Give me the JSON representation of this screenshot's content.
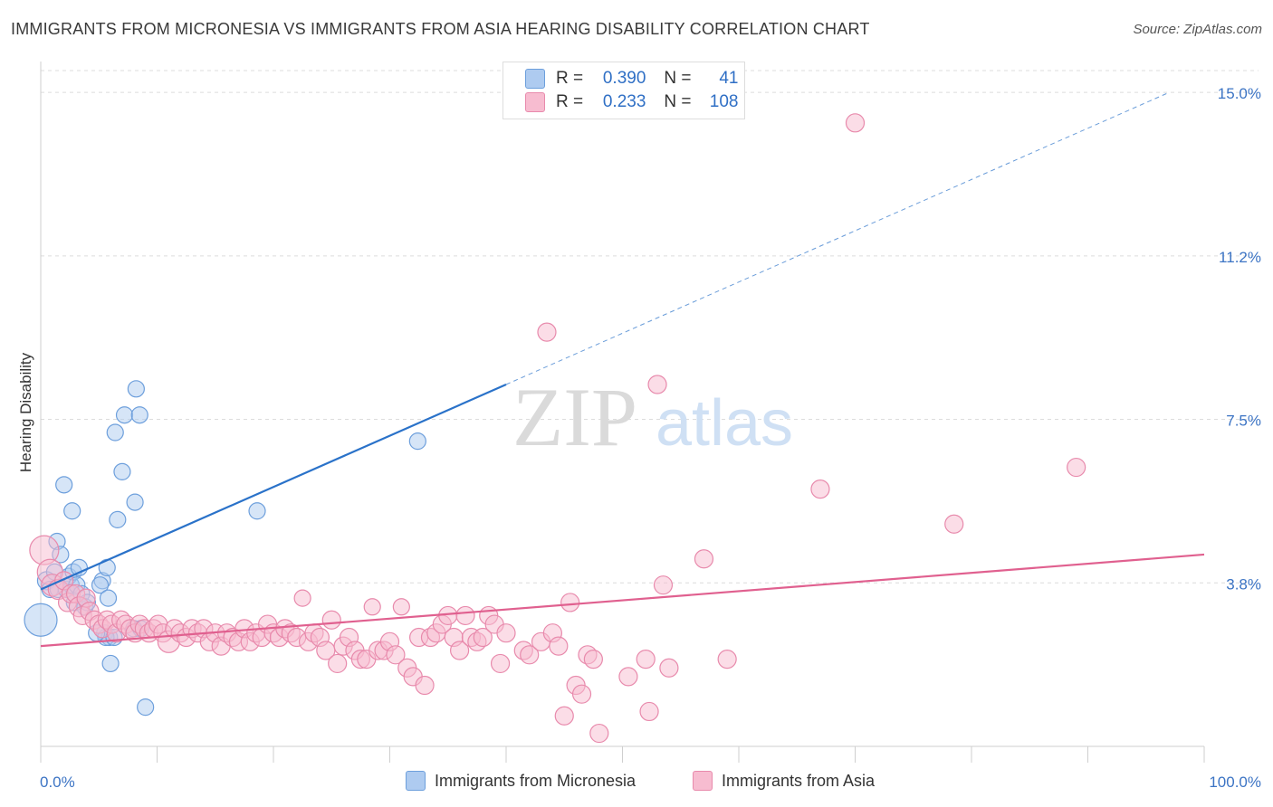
{
  "title": "IMMIGRANTS FROM MICRONESIA VS IMMIGRANTS FROM ASIA HEARING DISABILITY CORRELATION CHART",
  "source": "Source: ZipAtlas.com",
  "watermark": {
    "zip": "ZIP",
    "atlas": "atlas"
  },
  "legend": {
    "r_label": "R =",
    "n_label": "N =",
    "series": [
      {
        "name": "Immigrants from Micronesia",
        "r": "0.390",
        "n": "41",
        "fill": "#aecbf0",
        "stroke": "#6d9fdc",
        "line": "#2a72c9"
      },
      {
        "name": "Immigrants from Asia",
        "r": "0.233",
        "n": "108",
        "fill": "#f7bcd0",
        "stroke": "#e88aac",
        "line": "#e0608f"
      }
    ]
  },
  "chart_data": {
    "type": "scatter",
    "title": "IMMIGRANTS FROM MICRONESIA VS IMMIGRANTS FROM ASIA HEARING DISABILITY CORRELATION CHART",
    "xlabel": "",
    "ylabel": "Hearing Disability",
    "x_tick_labels": [
      "0.0%",
      "100.0%"
    ],
    "y_tick_labels": [
      "3.8%",
      "7.5%",
      "11.2%",
      "15.0%"
    ],
    "y_ticks": [
      3.75,
      7.5,
      11.25,
      15.0
    ],
    "xlim": [
      0,
      100
    ],
    "ylim": [
      0,
      15.5
    ],
    "grid": true,
    "legend_placement": "top-center",
    "series": [
      {
        "name": "Immigrants from Micronesia",
        "color": "#6d9fdc",
        "trend": {
          "x": [
            0,
            40
          ],
          "y": [
            3.6,
            8.3
          ],
          "extended_to": [
            97,
            15.0
          ]
        },
        "points": [
          [
            0,
            2.9,
            18
          ],
          [
            0.5,
            3.8,
            10
          ],
          [
            0.8,
            3.6,
            9
          ],
          [
            1.2,
            4.0,
            9
          ],
          [
            1.5,
            3.6,
            9
          ],
          [
            1.4,
            4.7,
            9
          ],
          [
            1.7,
            4.4,
            9
          ],
          [
            2.0,
            6.0,
            9
          ],
          [
            2.2,
            3.6,
            9
          ],
          [
            2.4,
            3.9,
            9
          ],
          [
            2.6,
            3.7,
            9
          ],
          [
            2.8,
            4.0,
            9
          ],
          [
            2.9,
            3.3,
            9
          ],
          [
            2.7,
            5.4,
            9
          ],
          [
            3.1,
            3.7,
            9
          ],
          [
            3.3,
            4.1,
            9
          ],
          [
            3.5,
            3.5,
            9
          ],
          [
            3.8,
            3.2,
            9
          ],
          [
            4.0,
            3.3,
            9
          ],
          [
            5.3,
            3.8,
            9
          ],
          [
            5.1,
            3.7,
            9
          ],
          [
            5.8,
            3.4,
            9
          ],
          [
            5.5,
            2.6,
            9
          ],
          [
            5.9,
            2.5,
            9
          ],
          [
            5.6,
            2.5,
            9
          ],
          [
            4.8,
            2.6,
            9
          ],
          [
            6.3,
            2.5,
            9
          ],
          [
            6.0,
            1.9,
            9
          ],
          [
            5.7,
            4.1,
            9
          ],
          [
            6.4,
            7.2,
            9
          ],
          [
            6.6,
            5.2,
            9
          ],
          [
            7.0,
            6.3,
            9
          ],
          [
            7.2,
            7.6,
            9
          ],
          [
            8.2,
            8.2,
            9
          ],
          [
            8.5,
            7.6,
            9
          ],
          [
            8.1,
            5.6,
            9
          ],
          [
            8.0,
            2.7,
            9
          ],
          [
            8.6,
            2.7,
            9
          ],
          [
            9.0,
            0.9,
            9
          ],
          [
            18.6,
            5.4,
            9
          ],
          [
            32.4,
            7.0,
            9
          ]
        ]
      },
      {
        "name": "Immigrants from Asia",
        "color": "#e88aac",
        "trend": {
          "x": [
            0,
            100
          ],
          "y": [
            2.3,
            4.4
          ]
        },
        "points": [
          [
            0.3,
            4.5,
            16
          ],
          [
            0.8,
            4.0,
            14
          ],
          [
            1.0,
            3.7,
            12
          ],
          [
            1.5,
            3.6,
            11
          ],
          [
            2.0,
            3.8,
            10
          ],
          [
            2.3,
            3.3,
            10
          ],
          [
            2.6,
            3.5,
            10
          ],
          [
            3.0,
            3.5,
            10
          ],
          [
            3.3,
            3.2,
            11
          ],
          [
            3.6,
            3.0,
            10
          ],
          [
            3.9,
            3.4,
            10
          ],
          [
            4.2,
            3.1,
            10
          ],
          [
            4.6,
            2.9,
            10
          ],
          [
            5.0,
            2.8,
            10
          ],
          [
            5.3,
            2.7,
            10
          ],
          [
            5.7,
            2.9,
            10
          ],
          [
            6.1,
            2.8,
            10
          ],
          [
            6.5,
            2.6,
            10
          ],
          [
            6.9,
            2.9,
            10
          ],
          [
            7.3,
            2.8,
            10
          ],
          [
            7.7,
            2.7,
            10
          ],
          [
            8.1,
            2.6,
            10
          ],
          [
            8.5,
            2.8,
            10
          ],
          [
            8.9,
            2.7,
            10
          ],
          [
            9.3,
            2.6,
            10
          ],
          [
            9.7,
            2.7,
            10
          ],
          [
            10.1,
            2.8,
            10
          ],
          [
            10.5,
            2.6,
            10
          ],
          [
            11.0,
            2.4,
            12
          ],
          [
            11.5,
            2.7,
            10
          ],
          [
            12.0,
            2.6,
            10
          ],
          [
            12.5,
            2.5,
            10
          ],
          [
            13.0,
            2.7,
            10
          ],
          [
            13.5,
            2.6,
            10
          ],
          [
            14.0,
            2.7,
            10
          ],
          [
            14.5,
            2.4,
            10
          ],
          [
            15.0,
            2.6,
            10
          ],
          [
            15.5,
            2.3,
            10
          ],
          [
            16.0,
            2.6,
            10
          ],
          [
            16.5,
            2.5,
            10
          ],
          [
            17.0,
            2.4,
            10
          ],
          [
            17.5,
            2.7,
            10
          ],
          [
            18.0,
            2.4,
            10
          ],
          [
            18.5,
            2.6,
            10
          ],
          [
            19.0,
            2.5,
            10
          ],
          [
            19.5,
            2.8,
            10
          ],
          [
            20.0,
            2.6,
            10
          ],
          [
            20.5,
            2.5,
            10
          ],
          [
            21.0,
            2.7,
            10
          ],
          [
            21.5,
            2.6,
            10
          ],
          [
            22.0,
            2.5,
            10
          ],
          [
            22.5,
            3.4,
            9
          ],
          [
            23.0,
            2.4,
            10
          ],
          [
            23.5,
            2.6,
            10
          ],
          [
            24.0,
            2.5,
            10
          ],
          [
            24.5,
            2.2,
            10
          ],
          [
            25.0,
            2.9,
            10
          ],
          [
            25.5,
            1.9,
            10
          ],
          [
            26.0,
            2.3,
            10
          ],
          [
            26.5,
            2.5,
            10
          ],
          [
            27.0,
            2.2,
            10
          ],
          [
            27.5,
            2.0,
            10
          ],
          [
            28.0,
            2.0,
            10
          ],
          [
            28.5,
            3.2,
            9
          ],
          [
            29.0,
            2.2,
            10
          ],
          [
            29.5,
            2.2,
            10
          ],
          [
            30.0,
            2.4,
            10
          ],
          [
            30.5,
            2.1,
            10
          ],
          [
            31.0,
            3.2,
            9
          ],
          [
            31.5,
            1.8,
            10
          ],
          [
            32.0,
            1.6,
            10
          ],
          [
            32.5,
            2.5,
            10
          ],
          [
            33.0,
            1.4,
            10
          ],
          [
            33.5,
            2.5,
            10
          ],
          [
            34.0,
            2.6,
            10
          ],
          [
            34.5,
            2.8,
            10
          ],
          [
            35.0,
            3.0,
            10
          ],
          [
            35.5,
            2.5,
            10
          ],
          [
            36.0,
            2.2,
            10
          ],
          [
            36.5,
            3.0,
            10
          ],
          [
            37.0,
            2.5,
            10
          ],
          [
            37.5,
            2.4,
            10
          ],
          [
            38.0,
            2.5,
            10
          ],
          [
            38.5,
            3.0,
            10
          ],
          [
            39.0,
            2.8,
            10
          ],
          [
            39.5,
            1.9,
            10
          ],
          [
            40.0,
            2.6,
            10
          ],
          [
            41.5,
            2.2,
            10
          ],
          [
            42.0,
            2.1,
            10
          ],
          [
            43.0,
            2.4,
            10
          ],
          [
            44.0,
            2.6,
            10
          ],
          [
            44.5,
            2.3,
            10
          ],
          [
            45.0,
            0.7,
            10
          ],
          [
            45.5,
            3.3,
            10
          ],
          [
            46.0,
            1.4,
            10
          ],
          [
            46.5,
            1.2,
            10
          ],
          [
            47.0,
            2.1,
            10
          ],
          [
            47.5,
            2.0,
            10
          ],
          [
            48.0,
            0.3,
            10
          ],
          [
            50.5,
            1.6,
            10
          ],
          [
            52.0,
            2.0,
            10
          ],
          [
            52.3,
            0.8,
            10
          ],
          [
            53.5,
            3.7,
            10
          ],
          [
            53.0,
            8.3,
            10
          ],
          [
            54.0,
            1.8,
            10
          ],
          [
            57.0,
            4.3,
            10
          ],
          [
            59.0,
            2.0,
            10
          ],
          [
            43.5,
            9.5,
            10
          ],
          [
            67.0,
            5.9,
            10
          ],
          [
            70.0,
            14.3,
            10
          ],
          [
            78.5,
            5.1,
            10
          ],
          [
            89.0,
            6.4,
            10
          ]
        ]
      }
    ]
  }
}
